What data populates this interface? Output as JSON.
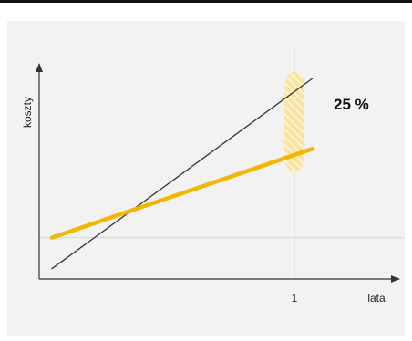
{
  "chart_data": {
    "type": "line",
    "ylabel": "koszty",
    "xlabel": "lata",
    "x_ticks": [
      {
        "value": 1,
        "label": "1"
      }
    ],
    "xlim": [
      0,
      1.1
    ],
    "ylim": [
      0,
      1.05
    ],
    "grid": {
      "vertical_at_x": [
        1
      ],
      "horizontal_at_y": [
        0.2
      ]
    },
    "series": [
      {
        "color": "#333333",
        "points": [
          [
            0.05,
            0.05
          ],
          [
            1.07,
            0.97
          ]
        ]
      },
      {
        "color": "#f2b705",
        "points": [
          [
            0.05,
            0.2
          ],
          [
            1.07,
            0.63
          ]
        ]
      }
    ],
    "annotation": {
      "text": "25 %",
      "color": "#f2b705"
    }
  }
}
